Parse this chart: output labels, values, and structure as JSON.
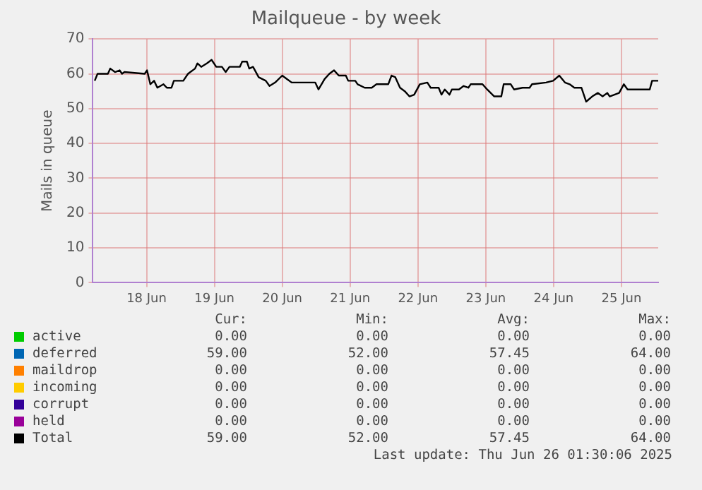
{
  "chart_data": {
    "type": "line",
    "title": "Mailqueue - by week",
    "ylabel": "Mails in queue",
    "x": [
      "2025-06-17T05:40",
      "2025-06-17T06:40",
      "2025-06-17T10:20",
      "2025-06-17T11:10",
      "2025-06-17T12:50",
      "2025-06-17T14:30",
      "2025-06-17T15:20",
      "2025-06-17T16:10",
      "2025-06-17T23:20",
      "2025-06-18T00:10",
      "2025-06-18T01:20",
      "2025-06-18T02:40",
      "2025-06-18T03:50",
      "2025-06-18T06:00",
      "2025-06-18T07:10",
      "2025-06-18T08:50",
      "2025-06-18T09:40",
      "2025-06-18T13:00",
      "2025-06-18T14:40",
      "2025-06-18T15:30",
      "2025-06-18T17:10",
      "2025-06-18T18:00",
      "2025-06-18T19:20",
      "2025-06-18T21:20",
      "2025-06-18T23:00",
      "2025-06-19T00:40",
      "2025-06-19T02:40",
      "2025-06-19T04:00",
      "2025-06-19T05:20",
      "2025-06-19T09:00",
      "2025-06-19T09:50",
      "2025-06-19T11:30",
      "2025-06-19T12:20",
      "2025-06-19T13:40",
      "2025-06-19T15:40",
      "2025-06-19T18:10",
      "2025-06-19T19:30",
      "2025-06-19T21:30",
      "2025-06-20T00:00",
      "2025-06-20T01:40",
      "2025-06-20T03:20",
      "2025-06-20T11:40",
      "2025-06-20T12:50",
      "2025-06-20T15:00",
      "2025-06-20T16:40",
      "2025-06-20T18:20",
      "2025-06-20T20:00",
      "2025-06-20T22:30",
      "2025-06-20T23:20",
      "2025-06-21T01:50",
      "2025-06-21T02:40",
      "2025-06-21T05:10",
      "2025-06-21T07:40",
      "2025-06-21T09:20",
      "2025-06-21T13:30",
      "2025-06-21T14:40",
      "2025-06-21T16:00",
      "2025-06-21T17:40",
      "2025-06-21T19:20",
      "2025-06-21T21:00",
      "2025-06-21T22:40",
      "2025-06-22T00:40",
      "2025-06-22T03:20",
      "2025-06-22T04:30",
      "2025-06-22T07:20",
      "2025-06-22T08:20",
      "2025-06-22T09:30",
      "2025-06-22T11:10",
      "2025-06-22T12:00",
      "2025-06-22T14:30",
      "2025-06-22T16:10",
      "2025-06-22T17:50",
      "2025-06-22T18:40",
      "2025-06-22T22:50",
      "2025-06-23T00:30",
      "2025-06-23T03:00",
      "2025-06-23T05:30",
      "2025-06-23T06:20",
      "2025-06-23T08:50",
      "2025-06-23T10:00",
      "2025-06-23T13:00",
      "2025-06-23T15:30",
      "2025-06-23T16:20",
      "2025-06-23T21:20",
      "2025-06-23T23:50",
      "2025-06-24T02:00",
      "2025-06-24T04:00",
      "2025-06-24T05:40",
      "2025-06-24T07:20",
      "2025-06-24T09:50",
      "2025-06-24T11:30",
      "2025-06-24T13:40",
      "2025-06-24T15:40",
      "2025-06-24T17:20",
      "2025-06-24T19:00",
      "2025-06-24T19:50",
      "2025-06-24T23:10",
      "2025-06-25T00:50",
      "2025-06-25T02:10",
      "2025-06-25T10:00",
      "2025-06-25T10:50",
      "2025-06-25T13:00"
    ],
    "series": [
      {
        "name": "active",
        "color": "#00cc00",
        "values": [
          null,
          null,
          null,
          null,
          null,
          null,
          null,
          null,
          null,
          null,
          null,
          null,
          null,
          null,
          null,
          null,
          null,
          null,
          null,
          null,
          null,
          null,
          null,
          null,
          null,
          null,
          null,
          null,
          null,
          null,
          null,
          null,
          null,
          null,
          null,
          null,
          null,
          null,
          null,
          null,
          null,
          null,
          null,
          null,
          null,
          null,
          null,
          null,
          null,
          null,
          null,
          null,
          null,
          null,
          null,
          null,
          null,
          null,
          null,
          null,
          null,
          null,
          null,
          null,
          null,
          null,
          null,
          null,
          null,
          null,
          null,
          null,
          null,
          null,
          null,
          null,
          null,
          null,
          null,
          null,
          null,
          null,
          null,
          null,
          null,
          null,
          null,
          null,
          null,
          null,
          null,
          null,
          null,
          null,
          null,
          null,
          null,
          null,
          null,
          null,
          null,
          null
        ]
      },
      {
        "name": "deferred",
        "color": "#0066b3",
        "values": [
          null,
          null,
          null,
          null,
          null,
          null,
          null,
          null,
          null,
          null,
          null,
          null,
          null,
          null,
          null,
          null,
          null,
          null,
          null,
          null,
          null,
          null,
          null,
          null,
          null,
          null,
          null,
          null,
          null,
          null,
          null,
          null,
          null,
          null,
          null,
          null,
          null,
          null,
          null,
          null,
          null,
          null,
          null,
          null,
          null,
          null,
          null,
          null,
          null,
          null,
          null,
          null,
          null,
          null,
          null,
          null,
          null,
          null,
          null,
          null,
          null,
          null,
          null,
          null,
          null,
          null,
          null,
          null,
          null,
          null,
          null,
          null,
          null,
          null,
          null,
          null,
          null,
          null,
          null,
          null,
          null,
          null,
          null,
          null,
          null,
          null,
          null,
          null,
          null,
          null,
          null,
          null,
          null,
          null,
          null,
          null,
          null,
          null,
          null,
          null,
          null,
          null
        ]
      },
      {
        "name": "maildrop",
        "color": "#ff8000",
        "values": [
          null,
          null,
          null,
          null,
          null,
          null,
          null,
          null,
          null,
          null,
          null,
          null,
          null,
          null,
          null,
          null,
          null,
          null,
          null,
          null,
          null,
          null,
          null,
          null,
          null,
          null,
          null,
          null,
          null,
          null,
          null,
          null,
          null,
          null,
          null,
          null,
          null,
          null,
          null,
          null,
          null,
          null,
          null,
          null,
          null,
          null,
          null,
          null,
          null,
          null,
          null,
          null,
          null,
          null,
          null,
          null,
          null,
          null,
          null,
          null,
          null,
          null,
          null,
          null,
          null,
          null,
          null,
          null,
          null,
          null,
          null,
          null,
          null,
          null,
          null,
          null,
          null,
          null,
          null,
          null,
          null,
          null,
          null,
          null,
          null,
          null,
          null,
          null,
          null,
          null,
          null,
          null,
          null,
          null,
          null,
          null,
          null,
          null,
          null,
          null,
          null,
          null
        ]
      },
      {
        "name": "incoming",
        "color": "#ffcc00",
        "values": [
          null,
          null,
          null,
          null,
          null,
          null,
          null,
          null,
          null,
          null,
          null,
          null,
          null,
          null,
          null,
          null,
          null,
          null,
          null,
          null,
          null,
          null,
          null,
          null,
          null,
          null,
          null,
          null,
          null,
          null,
          null,
          null,
          null,
          null,
          null,
          null,
          null,
          null,
          null,
          null,
          null,
          null,
          null,
          null,
          null,
          null,
          null,
          null,
          null,
          null,
          null,
          null,
          null,
          null,
          null,
          null,
          null,
          null,
          null,
          null,
          null,
          null,
          null,
          null,
          null,
          null,
          null,
          null,
          null,
          null,
          null,
          null,
          null,
          null,
          null,
          null,
          null,
          null,
          null,
          null,
          null,
          null,
          null,
          null,
          null,
          null,
          null,
          null,
          null,
          null,
          null,
          null,
          null,
          null,
          null,
          null,
          null,
          null,
          null,
          null,
          null,
          null
        ]
      },
      {
        "name": "corrupt",
        "color": "#330099",
        "values": [
          null,
          null,
          null,
          null,
          null,
          null,
          null,
          null,
          null,
          null,
          null,
          null,
          null,
          null,
          null,
          null,
          null,
          null,
          null,
          null,
          null,
          null,
          null,
          null,
          null,
          null,
          null,
          null,
          null,
          null,
          null,
          null,
          null,
          null,
          null,
          null,
          null,
          null,
          null,
          null,
          null,
          null,
          null,
          null,
          null,
          null,
          null,
          null,
          null,
          null,
          null,
          null,
          null,
          null,
          null,
          null,
          null,
          null,
          null,
          null,
          null,
          null,
          null,
          null,
          null,
          null,
          null,
          null,
          null,
          null,
          null,
          null,
          null,
          null,
          null,
          null,
          null,
          null,
          null,
          null,
          null,
          null,
          null,
          null,
          null,
          null,
          null,
          null,
          null,
          null,
          null,
          null,
          null,
          null,
          null,
          null,
          null,
          null,
          null,
          null,
          null,
          null
        ]
      },
      {
        "name": "held",
        "color": "#990099",
        "values": [
          null,
          null,
          null,
          null,
          null,
          null,
          null,
          null,
          null,
          null,
          null,
          null,
          null,
          null,
          null,
          null,
          null,
          null,
          null,
          null,
          null,
          null,
          null,
          null,
          null,
          null,
          null,
          null,
          null,
          null,
          null,
          null,
          null,
          null,
          null,
          null,
          null,
          null,
          null,
          null,
          null,
          null,
          null,
          null,
          null,
          null,
          null,
          null,
          null,
          null,
          null,
          null,
          null,
          null,
          null,
          null,
          null,
          null,
          null,
          null,
          null,
          null,
          null,
          null,
          null,
          null,
          null,
          null,
          null,
          null,
          null,
          null,
          null,
          null,
          null,
          null,
          null,
          null,
          null,
          null,
          null,
          null,
          null,
          null,
          null,
          null,
          null,
          null,
          null,
          null,
          null,
          null,
          null,
          null,
          null,
          null,
          null,
          null,
          null,
          null,
          null,
          null
        ]
      },
      {
        "name": "Total",
        "color": "#000000",
        "values": [
          58,
          60,
          60,
          61.5,
          60.5,
          61,
          60,
          60.5,
          60,
          61,
          57,
          58,
          56,
          57,
          56,
          56,
          58,
          58,
          60,
          60.5,
          61.5,
          63,
          62,
          63,
          64,
          62,
          62,
          60.5,
          62,
          62,
          63.5,
          63.5,
          61.5,
          62,
          59,
          58,
          56.5,
          57.5,
          59.5,
          58.5,
          57.5,
          57.5,
          55.5,
          58.5,
          60,
          61,
          59.5,
          59.5,
          58,
          58,
          57,
          56,
          56,
          57,
          57,
          59.5,
          59,
          56,
          55,
          53.5,
          54,
          57,
          57.5,
          56,
          56,
          54,
          55.5,
          54,
          55.5,
          55.5,
          56.5,
          56,
          57,
          57,
          55.5,
          53.5,
          53.5,
          57,
          57,
          55.5,
          56,
          56,
          57,
          57.5,
          58,
          59.5,
          57.5,
          57,
          56,
          56,
          52,
          53.5,
          54.5,
          53.5,
          54.5,
          53.5,
          54.5,
          57,
          55.5,
          55.5,
          58,
          58
        ]
      }
    ],
    "xlim": [
      "2025-06-17T05:00",
      "2025-06-25T13:00"
    ],
    "xticks": [
      {
        "value": "2025-06-18",
        "label": "18 Jun"
      },
      {
        "value": "2025-06-19",
        "label": "19 Jun"
      },
      {
        "value": "2025-06-20",
        "label": "20 Jun"
      },
      {
        "value": "2025-06-21",
        "label": "21 Jun"
      },
      {
        "value": "2025-06-22",
        "label": "22 Jun"
      },
      {
        "value": "2025-06-23",
        "label": "23 Jun"
      },
      {
        "value": "2025-06-24",
        "label": "24 Jun"
      },
      {
        "value": "2025-06-25",
        "label": "25 Jun"
      }
    ],
    "ylim": [
      0,
      70
    ],
    "yticks": [
      0,
      10,
      20,
      30,
      40,
      50,
      60,
      70
    ],
    "grid": true,
    "legend": "bottom",
    "marker": "none",
    "line_style": "solid",
    "annotations": [
      "Cur:",
      "Min:",
      "Avg:",
      "Max:",
      "0.00",
      "0.00",
      "0.00",
      "0.00",
      "59.00",
      "52.00",
      "57.45",
      "64.00",
      "0.00",
      "0.00",
      "0.00",
      "0.00",
      "0.00",
      "0.00",
      "0.00",
      "0.00",
      "0.00",
      "0.00",
      "0.00",
      "0.00",
      "0.00",
      "0.00",
      "0.00",
      "0.00",
      "59.00",
      "52.00",
      "57.45",
      "64.00",
      "Last update: Thu Jun 26 01:30:06 2025"
    ]
  }
}
